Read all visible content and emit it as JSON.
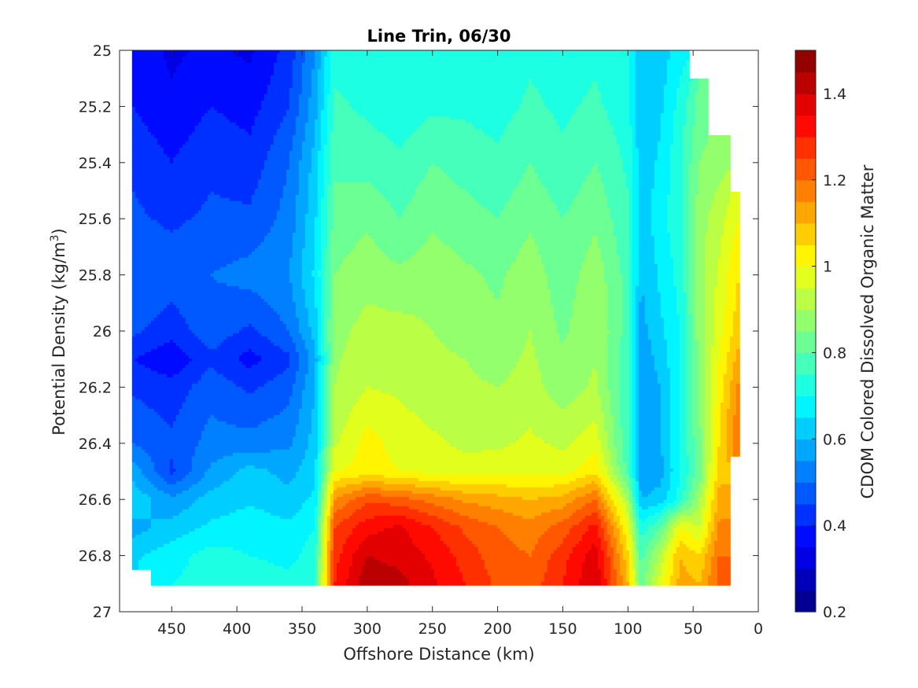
{
  "chart_data": {
    "type": "heatmap",
    "subtype": "filled-contour",
    "title": "Line Trin, 06/30",
    "xlabel": "Offshore Distance (km)",
    "ylabel": "Potential Density (kg/m",
    "ylabel_sup": "3",
    "ylabel_close": ")",
    "colorbar_label": "CDOM Colored Dissolved Organic Matter",
    "x_reversed": true,
    "y_reversed": true,
    "xlim": [
      0,
      490
    ],
    "ylim": [
      25,
      27
    ],
    "clim": [
      0.2,
      1.5
    ],
    "x_ticks": [
      0,
      50,
      100,
      150,
      200,
      250,
      300,
      350,
      400,
      450
    ],
    "x_tick_labels": [
      "0",
      "50",
      "100",
      "150",
      "200",
      "250",
      "300",
      "350",
      "400",
      "450"
    ],
    "y_ticks": [
      25,
      25.2,
      25.4,
      25.6,
      25.8,
      26,
      26.2,
      26.4,
      26.6,
      26.8,
      27
    ],
    "y_tick_labels": [
      "25",
      "25.2",
      "25.4",
      "25.6",
      "25.8",
      "26",
      "26.2",
      "26.4",
      "26.6",
      "26.8",
      "27"
    ],
    "colorbar_ticks": [
      0.2,
      0.4,
      0.6,
      0.8,
      1,
      1.2,
      1.4
    ],
    "colorbar_tick_labels": [
      "0.2",
      "0.4",
      "0.6",
      "0.8",
      "1",
      "1.2",
      "1.4"
    ],
    "colormap": "jet",
    "levels": 26,
    "grid": false,
    "x": [
      480,
      450,
      420,
      390,
      360,
      340,
      325,
      300,
      275,
      250,
      225,
      200,
      175,
      150,
      125,
      100,
      90,
      75,
      60,
      45,
      30,
      15
    ],
    "y": [
      25,
      25.2,
      25.4,
      25.6,
      25.8,
      26,
      26.1,
      26.2,
      26.4,
      26.5,
      26.6,
      26.7,
      26.8,
      26.9
    ],
    "z": [
      [
        0.38,
        0.34,
        0.36,
        0.34,
        0.42,
        0.55,
        0.73,
        0.72,
        0.7,
        0.72,
        0.71,
        0.7,
        0.74,
        0.72,
        0.74,
        0.7,
        0.6,
        0.62,
        0.68,
        null,
        null,
        null
      ],
      [
        0.4,
        0.36,
        0.4,
        0.38,
        0.45,
        0.58,
        0.76,
        0.74,
        0.72,
        0.74,
        0.74,
        0.73,
        0.76,
        0.74,
        0.76,
        0.72,
        0.6,
        0.64,
        0.72,
        0.82,
        null,
        null
      ],
      [
        0.44,
        0.4,
        0.44,
        0.42,
        0.5,
        0.62,
        0.79,
        0.78,
        0.76,
        0.8,
        0.78,
        0.76,
        0.8,
        0.76,
        0.8,
        0.74,
        0.62,
        0.66,
        0.74,
        0.85,
        0.88,
        null
      ],
      [
        0.46,
        0.44,
        0.46,
        0.46,
        0.52,
        0.64,
        0.82,
        0.84,
        0.8,
        0.84,
        0.82,
        0.8,
        0.84,
        0.8,
        0.84,
        0.76,
        0.62,
        0.68,
        0.74,
        0.88,
        0.93,
        1.0
      ],
      [
        0.5,
        0.48,
        0.5,
        0.52,
        0.55,
        0.66,
        0.85,
        0.88,
        0.86,
        0.88,
        0.86,
        0.84,
        0.88,
        0.82,
        0.88,
        0.78,
        0.6,
        0.66,
        0.72,
        0.88,
        0.96,
        1.05
      ],
      [
        0.46,
        0.42,
        0.48,
        0.44,
        0.5,
        0.62,
        0.88,
        0.92,
        0.92,
        0.9,
        0.88,
        0.86,
        0.9,
        0.84,
        0.9,
        0.78,
        0.58,
        0.64,
        0.7,
        0.88,
        0.98,
        1.08
      ],
      [
        0.4,
        0.36,
        0.44,
        0.38,
        0.44,
        0.58,
        0.89,
        0.94,
        0.93,
        0.91,
        0.9,
        0.88,
        0.91,
        0.86,
        0.9,
        0.76,
        0.56,
        0.62,
        0.7,
        0.86,
        1.0,
        1.12
      ],
      [
        0.44,
        0.42,
        0.48,
        0.44,
        0.48,
        0.6,
        0.9,
        0.95,
        0.94,
        0.92,
        0.91,
        0.9,
        0.92,
        0.87,
        0.91,
        0.76,
        0.56,
        0.6,
        0.7,
        0.86,
        1.02,
        1.16
      ],
      [
        0.5,
        0.46,
        0.52,
        0.52,
        0.54,
        0.62,
        0.94,
        1.02,
        0.98,
        0.96,
        0.94,
        0.94,
        0.96,
        0.94,
        0.98,
        0.76,
        0.56,
        0.6,
        0.7,
        0.84,
        1.05,
        1.2
      ],
      [
        0.58,
        0.44,
        0.56,
        0.62,
        0.58,
        0.64,
        1.0,
        1.02,
        1.0,
        0.98,
        0.97,
        0.98,
        0.98,
        0.98,
        1.04,
        0.78,
        0.56,
        0.58,
        0.7,
        0.82,
        1.08,
        null
      ],
      [
        0.64,
        0.56,
        0.62,
        0.64,
        0.62,
        0.66,
        1.15,
        1.24,
        1.22,
        1.18,
        1.14,
        1.12,
        1.1,
        1.12,
        1.2,
        0.9,
        0.6,
        0.62,
        0.72,
        0.9,
        1.12,
        null
      ],
      [
        0.58,
        0.62,
        0.66,
        0.68,
        0.66,
        0.7,
        1.25,
        1.33,
        1.36,
        1.3,
        1.24,
        1.2,
        1.17,
        1.22,
        1.32,
        1.0,
        0.72,
        0.8,
        1.0,
        0.95,
        1.16,
        null
      ],
      [
        0.64,
        0.68,
        0.72,
        0.7,
        0.68,
        0.73,
        1.28,
        1.4,
        1.38,
        1.34,
        1.28,
        1.22,
        1.2,
        1.28,
        1.38,
        1.06,
        0.78,
        0.92,
        1.1,
        1.05,
        1.2,
        null
      ],
      [
        null,
        0.7,
        0.72,
        0.74,
        0.72,
        0.75,
        1.3,
        1.44,
        1.42,
        1.36,
        1.3,
        1.24,
        1.22,
        1.3,
        1.4,
        1.1,
        0.82,
        0.98,
        1.12,
        1.1,
        1.22,
        null
      ]
    ]
  }
}
